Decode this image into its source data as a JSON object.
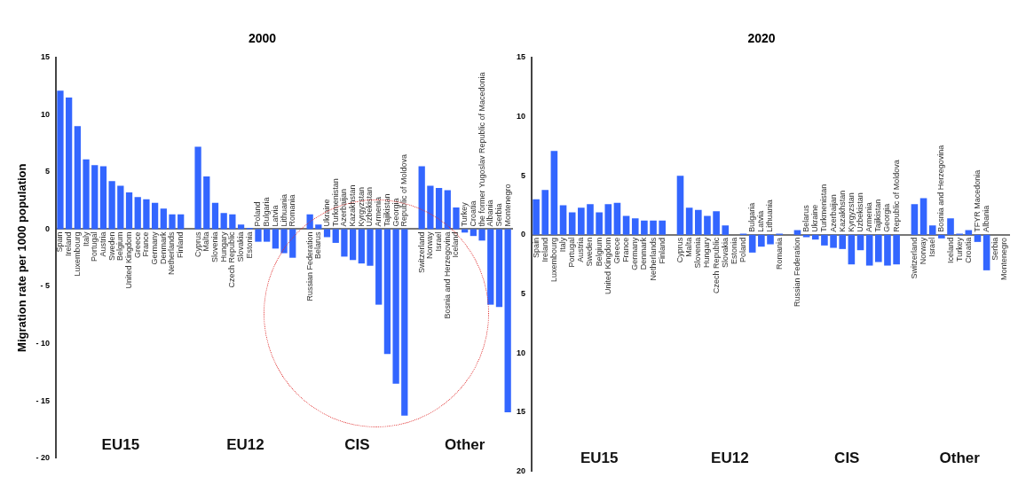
{
  "chart_data": [
    {
      "type": "bar",
      "title": "2000",
      "ylabel": "Migration rate per 1000 population",
      "categories": [
        "Spain",
        "Ireland",
        "Luxembourg",
        "Italy",
        "Portugal",
        "Austria",
        "Sweden",
        "Belgium",
        "United Kingdom",
        "Greece",
        "France",
        "Germany",
        "Denmark",
        "Netherlands",
        "Finland",
        null,
        "Cyprus",
        "Malta",
        "Slovenia",
        "Hungary",
        "Czech Republic",
        "Slovakia",
        "Estonia",
        "Poland",
        "Bulgaria",
        "Latvia",
        "Lithuania",
        "Romania",
        null,
        "Russian Federation",
        "Belarus",
        "Ukraine",
        "Turkmenistan",
        "Azerbaijan",
        "Kazakhstan",
        "Kyrgyzstan",
        "Uzbekistan",
        "Armenia",
        "Tajikistan",
        "Georgia",
        "Republic of Moldova",
        null,
        "Switzerland",
        "Norway",
        "Israel",
        "Bosnia and Herzegovina",
        "Iceland",
        "Turkey",
        "Croatia",
        "the former Yugoslav Republic of Macedonia",
        "Albania",
        "Serbia",
        "Montenegro"
      ],
      "values": [
        12.1,
        11.5,
        9.0,
        6.1,
        5.6,
        5.5,
        4.2,
        3.8,
        3.2,
        2.8,
        2.6,
        2.3,
        1.8,
        1.3,
        1.3,
        null,
        7.2,
        4.6,
        2.3,
        1.4,
        1.3,
        0.4,
        0.1,
        -1.1,
        -1.1,
        -1.7,
        -2.1,
        -2.5,
        null,
        1.3,
        0.4,
        -0.7,
        -1.2,
        -2.4,
        -2.7,
        -3.0,
        -3.2,
        -6.6,
        -10.9,
        -13.5,
        -16.3,
        null,
        5.5,
        3.8,
        3.6,
        3.4,
        1.9,
        -0.3,
        -0.6,
        -1.0,
        -6.6,
        -6.8,
        -16.0
      ],
      "color": "#3366ff",
      "ylim": [
        -20,
        15
      ],
      "yticks": [
        15,
        10,
        5,
        0,
        {
          "value": -5,
          "label": "- 5"
        },
        {
          "value": -10,
          "label": "- 10"
        },
        {
          "value": -15,
          "label": "- 15"
        },
        {
          "value": -20,
          "label": "- 20"
        }
      ],
      "annotations": [
        "EU15",
        "EU12",
        "CIS",
        "Other"
      ]
    },
    {
      "type": "bar",
      "title": "2020",
      "categories": [
        "Spain",
        "Ireland",
        "Luxembourg",
        "Italy",
        "Portugal",
        "Austria",
        "Sweden",
        "Belgium",
        "United Kingdom",
        "Greece",
        "France",
        "Germany",
        "Denmark",
        "Netherlands",
        "Finland",
        null,
        "Cyprus",
        "Malta",
        "Slovenia",
        "Hungary",
        "Czech Republic",
        "Slovakia",
        "Estonia",
        "Poland",
        "Bulgaria",
        "Latvia",
        "Lithuania",
        "Romania",
        null,
        "Russian Federation",
        "Belarus",
        "Ukraine",
        "Turkmenistan",
        "Azerbaijan",
        "Kazakhstan",
        "Kyrgyzstan",
        "Uzbekistan",
        "Armenia",
        "Tajikistan",
        "Georgia",
        "Republic of Moldova",
        null,
        "Switzerland",
        "Norway",
        "Israel",
        "Bosnia and Herzegovina",
        "Iceland",
        "Turkey",
        "Croatia",
        "TFYR Macedonia",
        "Albania",
        "Serbia",
        "Montenegro"
      ],
      "values": [
        3.0,
        3.8,
        7.1,
        2.5,
        1.9,
        2.3,
        2.6,
        1.9,
        2.6,
        2.7,
        1.6,
        1.4,
        1.2,
        1.2,
        1.2,
        null,
        5.0,
        2.3,
        2.1,
        1.6,
        2.0,
        0.8,
        0,
        0.1,
        -1.5,
        -1.0,
        -0.8,
        0.1,
        null,
        0.4,
        -0.2,
        -0.4,
        -0.9,
        -1.1,
        -1.2,
        -2.5,
        -1.3,
        -2.6,
        -2.3,
        -2.6,
        -2.5,
        null,
        2.6,
        3.1,
        0.8,
        -0.3,
        1.4,
        0.1,
        0.4,
        -0.6,
        -3.0,
        0,
        0
      ],
      "color": "#3366ff",
      "ylim": [
        -20,
        15
      ],
      "yticks": [
        15,
        10,
        5,
        0,
        {
          "value": -5,
          "label": "5"
        },
        {
          "value": -10,
          "label": "10"
        },
        {
          "value": -15,
          "label": "15"
        },
        {
          "value": -20,
          "label": "20"
        }
      ],
      "annotations": [
        "EU15",
        "EU12",
        "CIS",
        "Other"
      ]
    }
  ]
}
